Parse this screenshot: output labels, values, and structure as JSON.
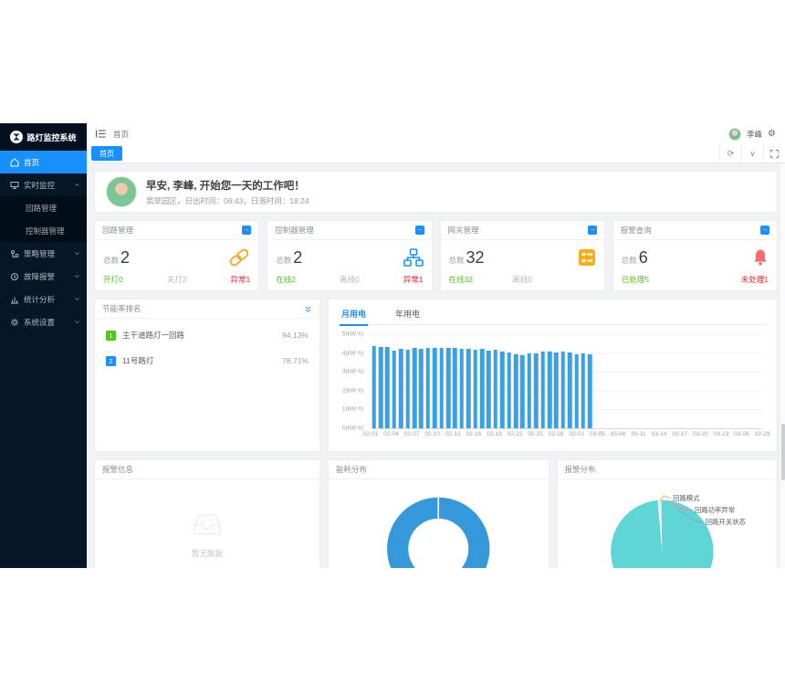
{
  "app": {
    "logo_title": "路灯监控系统"
  },
  "colors": {
    "primary": "#1890ff",
    "success": "#52c41a",
    "danger": "#f5222d",
    "warning": "#faad14",
    "bar": "#3ba0e3",
    "donut": "#3598db",
    "pie": "#60d5d5",
    "sidebar_bg": "#041627",
    "content_bg": "#f0f2f5"
  },
  "sidebar": {
    "items": [
      {
        "label": "首页"
      },
      {
        "label": "实时监控",
        "children": [
          {
            "label": "回路管理"
          },
          {
            "label": "控制器管理"
          }
        ]
      },
      {
        "label": "策略管理"
      },
      {
        "label": "故障报警"
      },
      {
        "label": "统计分析"
      },
      {
        "label": "系统设置"
      }
    ]
  },
  "header": {
    "breadcrumb": "首页",
    "username": "李峰"
  },
  "tabbar": {
    "active_tab": "首页"
  },
  "welcome": {
    "greeting": "早安, 李峰, 开始您一天的工作吧！",
    "subtitle": "翡翠园区，日出时间：06:43，日落时间：18:24"
  },
  "stat_cards": [
    {
      "title": "回路管理",
      "total_label": "总数",
      "total": "2",
      "icon": "link-icon",
      "stat_left": {
        "label": "开灯",
        "value": "0"
      },
      "stat_mid": {
        "label": "关灯",
        "value": "2"
      },
      "stat_right": {
        "label": "异常",
        "value": "1"
      }
    },
    {
      "title": "控制器管理",
      "total_label": "总数",
      "total": "2",
      "icon": "sitemap-icon",
      "stat_left": {
        "label": "在线",
        "value": "2"
      },
      "stat_mid": {
        "label": "离线",
        "value": "0"
      },
      "stat_right": {
        "label": "异常",
        "value": "1"
      }
    },
    {
      "title": "网关管理",
      "total_label": "总数",
      "total": "32",
      "icon": "gateway-icon",
      "stat_left": {
        "label": "在线",
        "value": "32"
      },
      "stat_mid": {
        "label": "离线",
        "value": "0"
      }
    },
    {
      "title": "报警查询",
      "total_label": "总数",
      "total": "6",
      "icon": "bell-icon",
      "stat_left": {
        "label": "已处理",
        "value": "5"
      },
      "stat_right": {
        "label": "未处理",
        "value": "1"
      }
    }
  ],
  "ranking": {
    "title": "节能率排名",
    "items": [
      {
        "rank": "1",
        "name": "主干道路灯一回路",
        "value": "94.13%"
      },
      {
        "rank": "2",
        "name": "11号路灯",
        "value": "78.71%"
      }
    ]
  },
  "usage_tabs": {
    "month_label": "月用电",
    "year_label": "年用电"
  },
  "chart_data": [
    {
      "type": "bar",
      "title": "月用电",
      "ylabel": "kW·h",
      "ylim": [
        0,
        5
      ],
      "grid": true,
      "bar_color": "#3ba0e3",
      "total_slots": 58,
      "y_tick_labels": [
        "5(kW·h)",
        "4(kW·h)",
        "3(kW·h)",
        "2(kW·h)",
        "1(kW·h)",
        "0(kW·h)"
      ],
      "x_tick_labels": [
        "02-01",
        "02-04",
        "02-07",
        "02-10",
        "02-13",
        "02-16",
        "02-19",
        "02-22",
        "02-25",
        "02-28",
        "03-02",
        "03-05",
        "03-08",
        "03-11",
        "03-14",
        "03-17",
        "03-20",
        "03-23",
        "03-26",
        "03-29"
      ],
      "x": [
        "02-01",
        "02-02",
        "02-03",
        "02-04",
        "02-05",
        "02-06",
        "02-07",
        "02-08",
        "02-09",
        "02-10",
        "02-11",
        "02-12",
        "02-13",
        "02-14",
        "02-15",
        "02-16",
        "02-17",
        "02-18",
        "02-19",
        "02-20",
        "02-21",
        "02-22",
        "02-23",
        "02-24",
        "02-25",
        "02-26",
        "02-27",
        "02-28",
        "03-01",
        "03-02",
        "03-03",
        "03-04",
        "03-05"
      ],
      "values": [
        4.35,
        4.33,
        4.3,
        4.12,
        4.24,
        4.18,
        4.26,
        4.23,
        4.27,
        4.25,
        4.27,
        4.26,
        4.25,
        4.21,
        4.24,
        4.19,
        4.22,
        4.14,
        4.18,
        4.08,
        4.02,
        3.94,
        3.9,
        3.96,
        3.99,
        4.06,
        4.08,
        4.05,
        4.08,
        4.03,
        3.95,
        3.99,
        3.94
      ]
    },
    {
      "type": "pie",
      "subtype": "donut",
      "title": "能耗分布",
      "slices": [
        {
          "label": "",
          "value": 100,
          "color": "#3598db"
        }
      ]
    },
    {
      "type": "pie",
      "title": "报警分布",
      "slices": [
        {
          "label": "回路开关状态",
          "value": 97,
          "color": "#60d5d5",
          "leader_color": "#74a8dc"
        },
        {
          "label": "回路功率异常",
          "value": 1.5,
          "leader_color": "#f28b82"
        },
        {
          "label": "回路模式",
          "value": 1.5,
          "leader_color": "#e6b33c"
        }
      ]
    }
  ],
  "alarm_info": {
    "title": "报警信息",
    "empty_text": "暂无数据"
  },
  "energy_dist": {
    "title": "能耗分布"
  },
  "alarm_dist": {
    "title": "报警分布",
    "labels": [
      {
        "text": "回路模式"
      },
      {
        "text": "回路功率异常"
      },
      {
        "text": "回路开关状态"
      }
    ]
  }
}
